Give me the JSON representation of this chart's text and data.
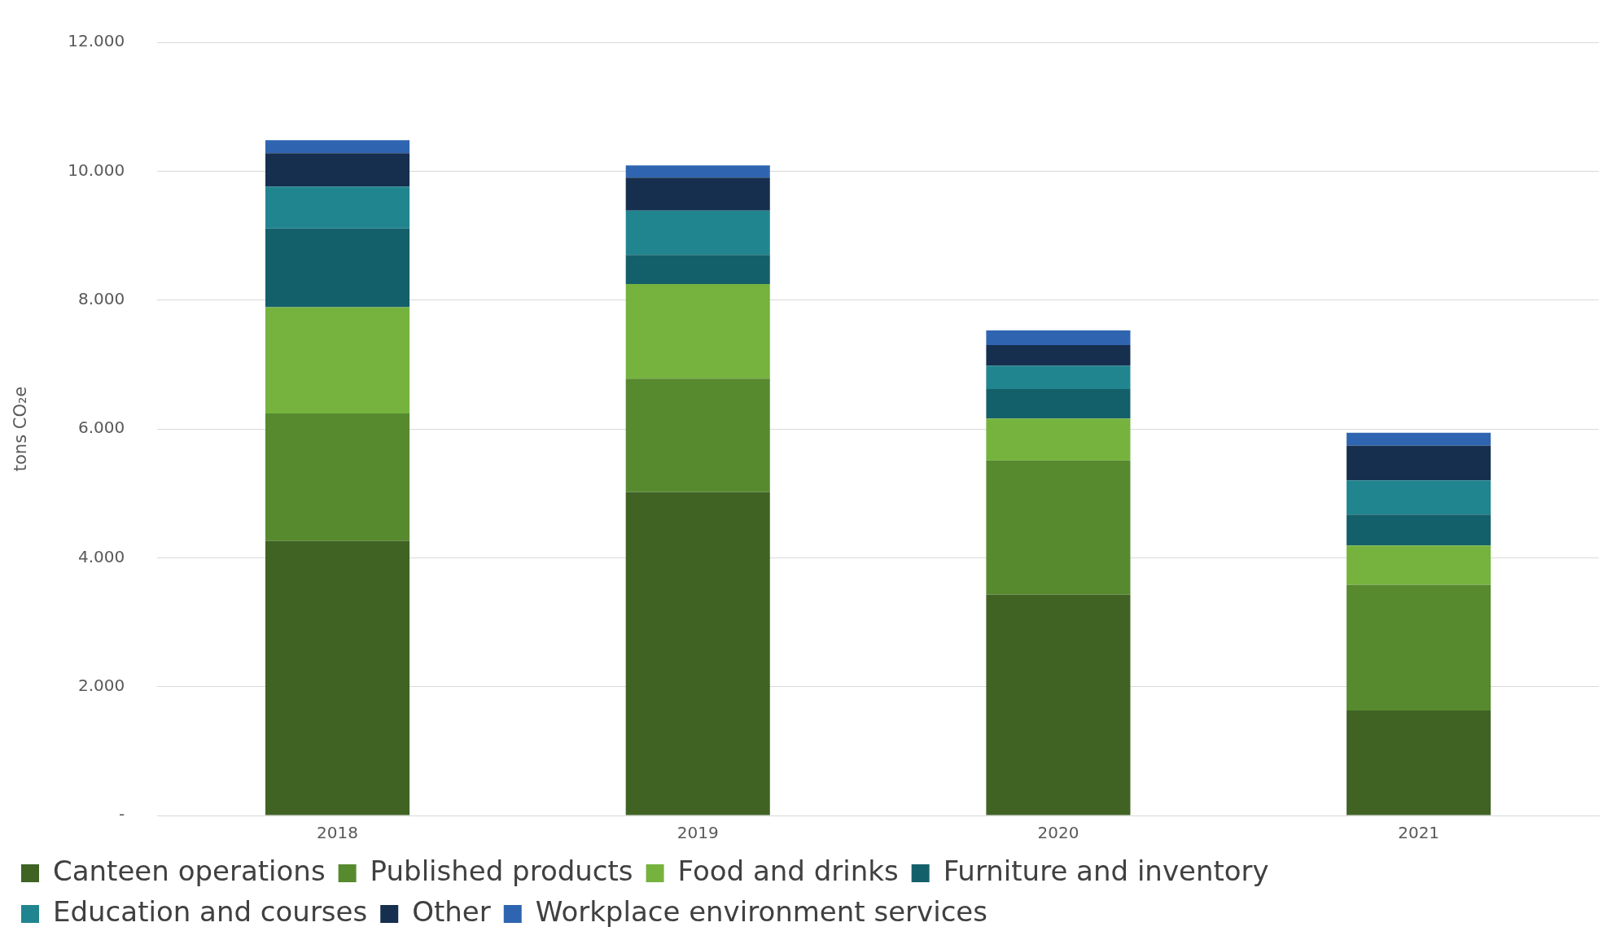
{
  "chart_data": {
    "type": "bar",
    "stacked": true,
    "ylabel": "tons CO₂e",
    "categories": [
      "2018",
      "2019",
      "2020",
      "2021"
    ],
    "series": [
      {
        "name": "Canteen operations",
        "color": "#406324",
        "values": [
          4260,
          5020,
          3430,
          1630
        ]
      },
      {
        "name": "Published products",
        "color": "#578a2f",
        "values": [
          1980,
          1760,
          2080,
          1950
        ]
      },
      {
        "name": "Food and drinks",
        "color": "#76b33e",
        "values": [
          1650,
          1470,
          650,
          610
        ]
      },
      {
        "name": "Furniture and inventory",
        "color": "#14606a",
        "values": [
          1220,
          450,
          460,
          480
        ]
      },
      {
        "name": "Education and courses",
        "color": "#218590",
        "values": [
          650,
          690,
          360,
          530
        ]
      },
      {
        "name": "Other",
        "color": "#162f4f",
        "values": [
          520,
          510,
          320,
          540
        ]
      },
      {
        "name": "Workplace environment services",
        "color": "#2f65b0",
        "values": [
          200,
          190,
          230,
          200
        ]
      }
    ],
    "ylim": [
      0,
      12000
    ],
    "yticks": [
      {
        "value": 0,
        "label": "-"
      },
      {
        "value": 2000,
        "label": "2.000"
      },
      {
        "value": 4000,
        "label": "4.000"
      },
      {
        "value": 6000,
        "label": "6.000"
      },
      {
        "value": 8000,
        "label": "8.000"
      },
      {
        "value": 10000,
        "label": "10.000"
      },
      {
        "value": 12000,
        "label": "12.000"
      }
    ],
    "grid": "y",
    "legend": "bottom"
  }
}
